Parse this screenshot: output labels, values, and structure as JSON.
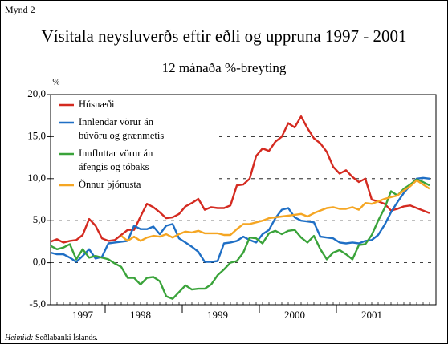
{
  "chart_data": {
    "type": "line",
    "figure_label": "Mynd 2",
    "title": "Vísitala neysluverðs eftir eðli og uppruna 1997 - 2001",
    "subtitle": "12 mánaða %-breyting",
    "y_label": "%",
    "source_label": "Heimild:",
    "source": "Seðlabanki Íslands.",
    "categories": [
      null,
      null,
      null,
      null,
      null,
      "1997",
      null,
      null,
      null,
      null,
      null,
      null,
      null,
      null,
      "1998",
      null,
      null,
      null,
      null,
      null,
      null,
      null,
      null,
      null,
      null,
      null,
      "1999",
      null,
      null,
      null,
      null,
      null,
      null,
      null,
      null,
      null,
      null,
      null,
      "2000",
      null,
      null,
      null,
      null,
      null,
      null,
      null,
      null,
      null,
      null,
      null,
      "2001",
      null,
      null,
      null,
      null,
      null,
      null,
      null,
      null,
      null
    ],
    "ylim": [
      -5,
      20
    ],
    "yticks": [
      {
        "value": -5,
        "label": "-5,0"
      },
      {
        "value": 0,
        "label": "0,0"
      },
      {
        "value": 5,
        "label": "5,0"
      },
      {
        "value": 10,
        "label": "10,0"
      },
      {
        "value": 15,
        "label": "15,0"
      },
      {
        "value": 20,
        "label": "20,0"
      }
    ],
    "grid": true,
    "legend": "upper left",
    "series": [
      {
        "name": "Húsnæði",
        "color": "#d42a20",
        "values": [
          2.5,
          2.8,
          2.4,
          2.6,
          2.7,
          3.3,
          5.2,
          4.4,
          2.9,
          2.6,
          2.7,
          3.3,
          3.9,
          3.9,
          5.5,
          7.0,
          6.6,
          6.0,
          5.3,
          5.4,
          5.8,
          6.7,
          7.1,
          7.6,
          6.3,
          6.6,
          6.5,
          6.5,
          6.8,
          9.2,
          9.3,
          10.0,
          12.7,
          13.6,
          13.3,
          14.4,
          15.0,
          16.6,
          16.1,
          17.4,
          16.0,
          14.8,
          14.2,
          13.2,
          11.4,
          10.6,
          11.0,
          10.2,
          9.6,
          10.0,
          7.5,
          7.3,
          7.0,
          6.2,
          6.4,
          6.7,
          6.8,
          6.5,
          6.2,
          5.9
        ]
      },
      {
        "name": "Innlendar vörur án búvöru og grænmetis",
        "color": "#1f6fc5",
        "values": [
          1.2,
          1.0,
          1.0,
          0.6,
          0.1,
          0.8,
          1.6,
          0.5,
          0.7,
          2.3,
          2.4,
          2.5,
          2.6,
          4.4,
          4.0,
          4.0,
          4.3,
          3.4,
          4.4,
          4.6,
          2.9,
          2.4,
          1.9,
          1.3,
          0.1,
          0.1,
          0.2,
          2.3,
          2.4,
          2.6,
          3.1,
          2.7,
          2.4,
          3.4,
          3.9,
          5.3,
          6.3,
          6.5,
          5.4,
          5.0,
          4.9,
          4.8,
          3.1,
          3.0,
          2.9,
          2.4,
          2.3,
          2.4,
          2.3,
          2.6,
          2.7,
          3.3,
          4.5,
          6.0,
          7.2,
          8.3,
          9.2,
          10.0,
          10.1,
          10.0
        ]
      },
      {
        "name": "Innfluttar vörur án áfengis og tóbaks",
        "color": "#3aa33a",
        "values": [
          2.0,
          1.6,
          1.8,
          2.2,
          0.4,
          1.6,
          0.6,
          0.8,
          0.6,
          0.4,
          -0.1,
          -0.5,
          -1.8,
          -1.8,
          -2.6,
          -1.8,
          -1.7,
          -2.2,
          -4.0,
          -4.3,
          -3.5,
          -2.7,
          -3.2,
          -3.1,
          -3.1,
          -2.6,
          -1.5,
          -0.8,
          0.0,
          0.2,
          1.2,
          3.0,
          2.9,
          2.3,
          3.5,
          3.8,
          3.4,
          3.8,
          3.9,
          3.0,
          2.4,
          3.2,
          1.6,
          0.4,
          1.2,
          1.5,
          1.0,
          0.4,
          2.1,
          2.2,
          3.3,
          5.0,
          6.5,
          8.5,
          8.0,
          8.8,
          9.3,
          9.9,
          9.6,
          9.2
        ]
      },
      {
        "name": "Önnur þjónusta",
        "color": "#f5a623",
        "values": [
          null,
          null,
          null,
          null,
          null,
          null,
          null,
          null,
          null,
          null,
          null,
          3.2,
          2.6,
          3.1,
          2.6,
          3.0,
          3.2,
          3.1,
          3.4,
          3.0,
          3.4,
          3.7,
          3.6,
          3.8,
          3.5,
          3.5,
          3.5,
          3.3,
          3.3,
          4.0,
          4.6,
          4.6,
          4.8,
          5.0,
          5.3,
          5.4,
          5.5,
          5.6,
          5.7,
          5.8,
          5.5,
          5.9,
          6.2,
          6.5,
          6.6,
          6.4,
          6.4,
          6.6,
          6.3,
          7.1,
          7.0,
          7.3,
          7.6,
          7.8,
          8.0,
          8.6,
          9.1,
          9.8,
          9.3,
          8.8
        ]
      }
    ]
  }
}
